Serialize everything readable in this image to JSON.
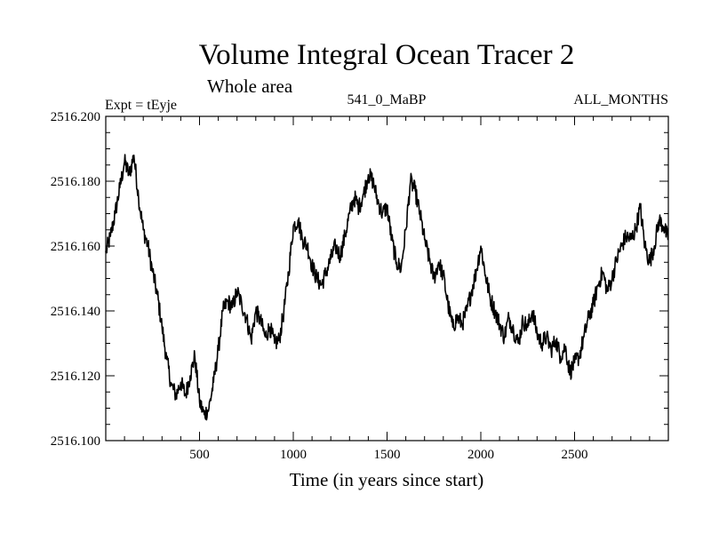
{
  "chart_data": {
    "type": "line",
    "title": "Volume Integral Ocean Tracer 2",
    "subtitle": "Whole area",
    "experiment_label": "Expt = tEyje",
    "center_label": "541_0_MaBP",
    "right_label": "ALL_MONTHS",
    "xlabel": "Time (in years since start)",
    "ylabel": "",
    "xlim": [
      0,
      3000
    ],
    "ylim": [
      2516.1,
      2516.2
    ],
    "x_ticks": [
      500,
      1000,
      1500,
      2000,
      2500
    ],
    "x_tick_labels": [
      "500",
      "1000",
      "1500",
      "2000",
      "2500"
    ],
    "y_ticks": [
      2516.1,
      2516.12,
      2516.14,
      2516.16,
      2516.18,
      2516.2
    ],
    "y_tick_labels": [
      "2516.100",
      "2516.120",
      "2516.140",
      "2516.160",
      "2516.180",
      "2516.200"
    ],
    "grid": false,
    "series": [
      {
        "name": "Tracer 2",
        "x": [
          0,
          25,
          50,
          75,
          100,
          125,
          150,
          175,
          200,
          225,
          250,
          275,
          300,
          325,
          350,
          375,
          400,
          425,
          450,
          475,
          500,
          525,
          550,
          575,
          600,
          625,
          650,
          675,
          700,
          725,
          750,
          775,
          800,
          825,
          850,
          875,
          900,
          925,
          950,
          975,
          1000,
          1025,
          1050,
          1075,
          1100,
          1125,
          1150,
          1175,
          1200,
          1225,
          1250,
          1275,
          1300,
          1325,
          1350,
          1375,
          1400,
          1425,
          1450,
          1475,
          1500,
          1525,
          1550,
          1575,
          1600,
          1625,
          1650,
          1675,
          1700,
          1725,
          1750,
          1775,
          1800,
          1825,
          1850,
          1875,
          1900,
          1925,
          1950,
          1975,
          2000,
          2025,
          2050,
          2075,
          2100,
          2125,
          2150,
          2175,
          2200,
          2225,
          2250,
          2275,
          2300,
          2325,
          2350,
          2375,
          2400,
          2425,
          2450,
          2475,
          2500,
          2525,
          2550,
          2575,
          2600,
          2625,
          2650,
          2675,
          2700,
          2725,
          2750,
          2775,
          2800,
          2825,
          2850,
          2875,
          2900,
          2925,
          2950,
          2975,
          3000
        ],
        "values": [
          2516.158,
          2516.163,
          2516.17,
          2516.178,
          2516.186,
          2516.182,
          2516.188,
          2516.175,
          2516.165,
          2516.16,
          2516.152,
          2516.145,
          2516.135,
          2516.125,
          2516.117,
          2516.114,
          2516.118,
          2516.114,
          2516.12,
          2516.126,
          2516.112,
          2516.108,
          2516.11,
          2516.118,
          2516.128,
          2516.14,
          2516.143,
          2516.141,
          2516.146,
          2516.142,
          2516.138,
          2516.131,
          2516.14,
          2516.137,
          2516.132,
          2516.135,
          2516.13,
          2516.131,
          2516.14,
          2516.152,
          2516.166,
          2516.168,
          2516.162,
          2516.16,
          2516.154,
          2516.15,
          2516.148,
          2516.152,
          2516.156,
          2516.16,
          2516.157,
          2516.163,
          2516.17,
          2516.175,
          2516.172,
          2516.176,
          2516.182,
          2516.18,
          2516.174,
          2516.17,
          2516.172,
          2516.162,
          2516.155,
          2516.153,
          2516.165,
          2516.18,
          2516.177,
          2516.17,
          2516.162,
          2516.156,
          2516.15,
          2516.155,
          2516.151,
          2516.142,
          2516.135,
          2516.138,
          2516.136,
          2516.14,
          2516.146,
          2516.152,
          2516.16,
          2516.151,
          2516.144,
          2516.14,
          2516.136,
          2516.132,
          2516.138,
          2516.134,
          2516.13,
          2516.137,
          2516.135,
          2516.14,
          2516.133,
          2516.13,
          2516.132,
          2516.128,
          2516.131,
          2516.126,
          2516.129,
          2516.121,
          2516.124,
          2516.126,
          2516.132,
          2516.138,
          2516.142,
          2516.148,
          2516.152,
          2516.146,
          2516.15,
          2516.156,
          2516.16,
          2516.163,
          2516.162,
          2516.165,
          2516.172,
          2516.16,
          2516.155,
          2516.16,
          2516.168,
          2516.166,
          2516.162
        ]
      }
    ]
  }
}
